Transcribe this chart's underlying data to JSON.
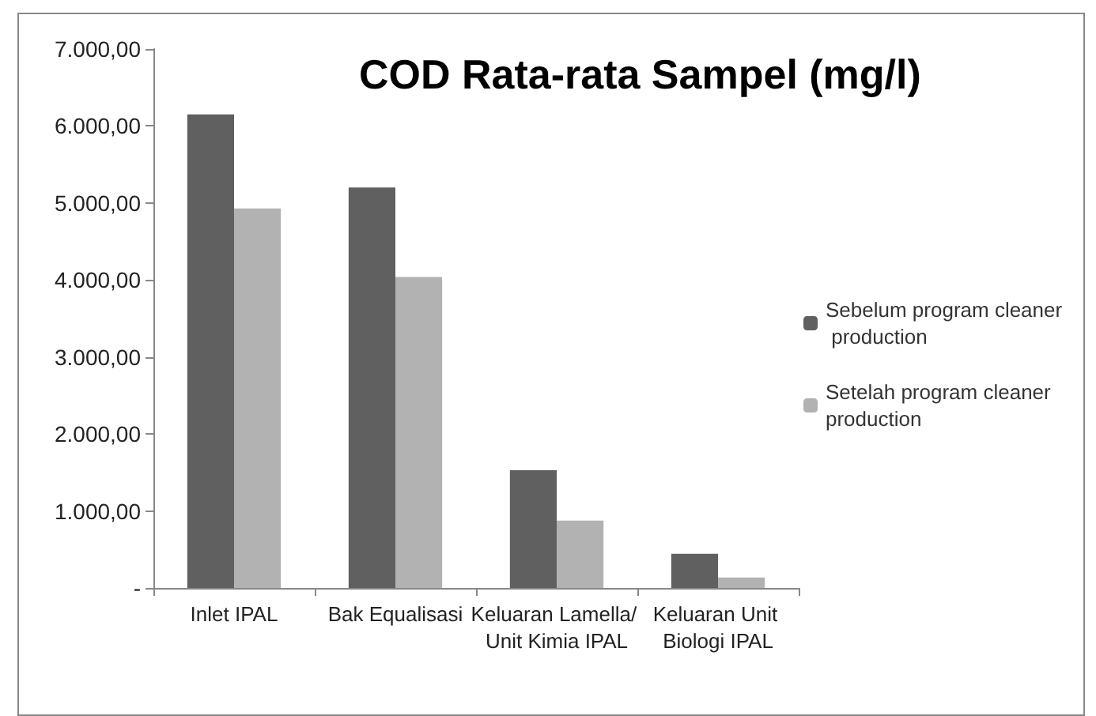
{
  "chart_data": {
    "type": "bar",
    "title": "COD Rata-rata Sampel (mg/l)",
    "categories": [
      "Inlet IPAL",
      "Bak Equalisasi",
      "Keluaran Lamella/ Unit Kimia IPAL",
      "Keluaran Unit Biologi IPAL"
    ],
    "series": [
      {
        "name": "Sebelum program cleaner production",
        "color": "#606060",
        "values": [
          6150,
          5200,
          1530,
          445
        ]
      },
      {
        "name": "Setelah program cleaner production",
        "color": "#b2b2b2",
        "values": [
          4930,
          4040,
          875,
          135
        ]
      }
    ],
    "ylim": [
      0,
      7000
    ],
    "yticks": [
      {
        "value": 0,
        "label": "-"
      },
      {
        "value": 1000,
        "label": "1.000,00"
      },
      {
        "value": 2000,
        "label": "2.000,00"
      },
      {
        "value": 3000,
        "label": "3.000,00"
      },
      {
        "value": 4000,
        "label": "4.000,00"
      },
      {
        "value": 5000,
        "label": "5.000,00"
      },
      {
        "value": 6000,
        "label": "6.000,00"
      },
      {
        "value": 7000,
        "label": "7.000,00"
      }
    ],
    "grid": false,
    "legend": "right"
  }
}
